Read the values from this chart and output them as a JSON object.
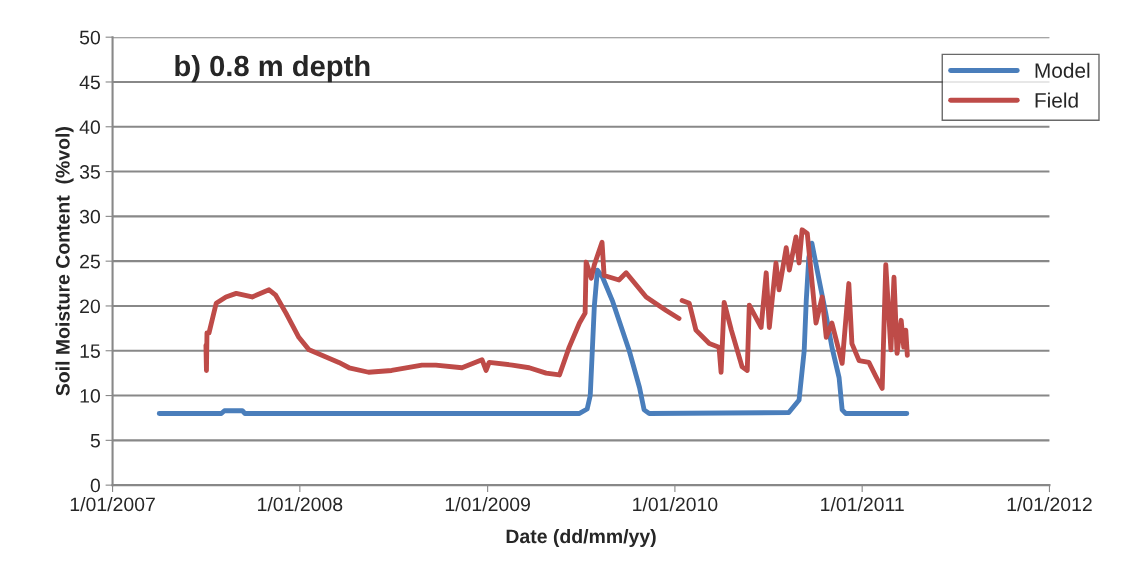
{
  "chart_data": {
    "type": "line",
    "title": "b) 0.8 m depth",
    "xlabel": "Date (dd/mm/yy)",
    "ylabel": "Soil Moisture Content  (%vol)",
    "xlim": [
      "2007-01-01",
      "2012-01-01"
    ],
    "xticks": [
      {
        "value": "2007-01-01",
        "label": "1/01/2007"
      },
      {
        "value": "2008-01-01",
        "label": "1/01/2008"
      },
      {
        "value": "2009-01-01",
        "label": "1/01/2009"
      },
      {
        "value": "2010-01-01",
        "label": "1/01/2010"
      },
      {
        "value": "2011-01-01",
        "label": "1/01/2011"
      },
      {
        "value": "2012-01-01",
        "label": "1/01/2012"
      }
    ],
    "ylim": [
      0,
      50
    ],
    "yticks": [
      0,
      5,
      10,
      15,
      20,
      25,
      30,
      35,
      40,
      45,
      50
    ],
    "grid": "y",
    "legend": "top right",
    "marker": "none",
    "line_style": "solid",
    "series": [
      {
        "name": "Model",
        "color": "#4a7ebb",
        "x": [
          "2007-04-02",
          "2007-08-01",
          "2007-08-07",
          "2007-09-11",
          "2007-09-16",
          "2009-06-29",
          "2009-07-14",
          "2009-07-20",
          "2009-07-28",
          "2009-08-03",
          "2009-08-13",
          "2009-09-01",
          "2009-10-04",
          "2009-10-24",
          "2009-11-02",
          "2009-11-12",
          "2010-08-11",
          "2010-08-31",
          "2010-09-10",
          "2010-09-14",
          "2010-09-19",
          "2010-09-25",
          "2010-10-09",
          "2010-10-22",
          "2010-11-03",
          "2010-11-17",
          "2010-11-23",
          "2010-11-30",
          "2011-03-29"
        ],
        "values": [
          8,
          8,
          8.3,
          8.3,
          8,
          8,
          8.5,
          10,
          20,
          24,
          23.2,
          20.6,
          15,
          10.9,
          8.4,
          8,
          8.1,
          9.5,
          15,
          20.6,
          25.4,
          27,
          22.9,
          19.2,
          15.4,
          12,
          8.4,
          8,
          8
        ]
      },
      {
        "name": "Field",
        "color": "#be4b48",
        "x": [
          "2007-07-02",
          "2007-07-03",
          "2007-07-04",
          "2007-07-08",
          "2007-07-22",
          "2007-08-10",
          "2007-08-30",
          "2007-09-30",
          "2007-11-02",
          "2007-11-15",
          "2007-12-05",
          "2007-12-30",
          "2008-01-19",
          "2008-02-13",
          "2008-03-17",
          "2008-04-06",
          "2008-05-14",
          "2008-06-28",
          "2008-08-26",
          "2008-09-22",
          "2008-11-12",
          "2008-12-21",
          "2008-12-29",
          "2009-01-04",
          "2009-02-18",
          "2009-03-23",
          "2009-04-25",
          "2009-05-21",
          "2009-06-09",
          "2009-06-29",
          "2009-07-10",
          "2009-07-12",
          "2009-07-22",
          "2009-07-28",
          "2009-08-12",
          "2009-08-16",
          "2009-09-14",
          "2009-09-28",
          "2009-11-06",
          "2009-12-15",
          "2010-01-09",
          "2010-01-12",
          "2010-01-15",
          "2010-01-29",
          "2010-02-11",
          "2010-03-09",
          "2010-03-28",
          "2010-04-01",
          "2010-04-07",
          "2010-04-21",
          "2010-05-12",
          "2010-05-22",
          "2010-05-26",
          "2010-06-18",
          "2010-06-28",
          "2010-07-04",
          "2010-07-17",
          "2010-07-23",
          "2010-08-06",
          "2010-08-12",
          "2010-08-25",
          "2010-08-31",
          "2010-09-06",
          "2010-09-16",
          "2010-09-23",
          "2010-10-03",
          "2010-10-15",
          "2010-10-23",
          "2010-11-03",
          "2010-11-23",
          "2010-12-06",
          "2010-12-12",
          "2010-12-26",
          "2011-01-14",
          "2011-01-28",
          "2011-02-09",
          "2011-02-16",
          "2011-02-26",
          "2011-03-04",
          "2011-03-10",
          "2011-03-18",
          "2011-03-23",
          "2011-03-27",
          "2011-03-30"
        ],
        "values": [
          15.6,
          12.8,
          17,
          17,
          20.3,
          21,
          21.4,
          21,
          21.8,
          21.2,
          19.2,
          16.5,
          15.1,
          14.5,
          13.7,
          13.1,
          12.6,
          12.8,
          13.4,
          13.4,
          13.1,
          14,
          12.8,
          13.7,
          13.4,
          13.1,
          12.5,
          12.3,
          15.4,
          18.1,
          19.2,
          24.9,
          23.1,
          24.6,
          27.1,
          23.4,
          22.9,
          23.7,
          21,
          19.5,
          18.6,
          null,
          20.6,
          20.3,
          17.3,
          15.8,
          15.4,
          12.6,
          20.4,
          17.3,
          13.2,
          12.8,
          20.1,
          17.6,
          23.7,
          17.6,
          24.8,
          21.8,
          26.5,
          24,
          27.7,
          24.8,
          28.5,
          28.1,
          24,
          18.1,
          21,
          16.5,
          18.1,
          13.6,
          22.5,
          15.8,
          13.9,
          13.7,
          12.1,
          10.8,
          24.6,
          15.1,
          23.2,
          14.7,
          18.4,
          15.4,
          17.3,
          14.5
        ]
      }
    ]
  }
}
